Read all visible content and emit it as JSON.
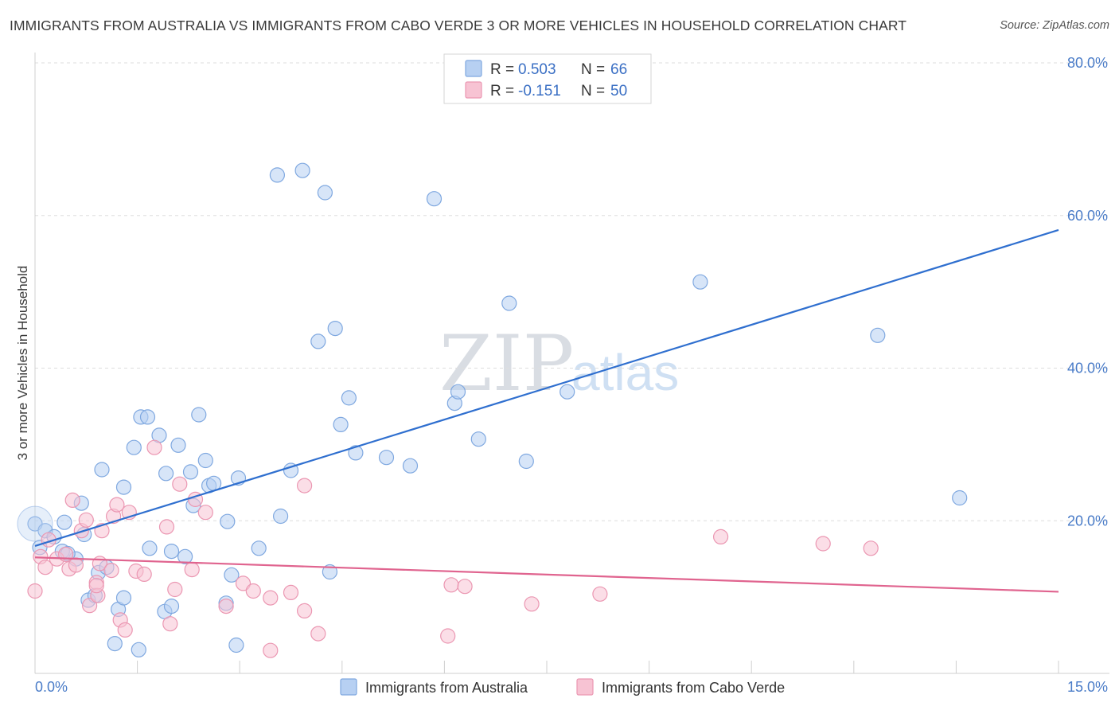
{
  "header": {
    "title": "IMMIGRANTS FROM AUSTRALIA VS IMMIGRANTS FROM CABO VERDE 3 OR MORE VEHICLES IN HOUSEHOLD CORRELATION CHART",
    "source": "Source: ZipAtlas.com"
  },
  "watermark": {
    "part1": "ZIP",
    "part2": "atlas"
  },
  "legend": {
    "rows": [
      {
        "r_label": "R = ",
        "r_value": "0.503",
        "n_label": "N = ",
        "n_value": "66"
      },
      {
        "r_label": "R = ",
        "r_value": "-0.151",
        "n_label": "N = ",
        "n_value": "50"
      }
    ]
  },
  "colors": {
    "australia_fill": "#b7d0f2",
    "australia_stroke": "#7fa8e0",
    "australia_line": "#2f6fcf",
    "caboverde_fill": "#f7c3d3",
    "caboverde_stroke": "#eb97b2",
    "caboverde_line": "#e0648f"
  },
  "chart_data": {
    "type": "scatter",
    "title": "IMMIGRANTS FROM AUSTRALIA VS IMMIGRANTS FROM CABO VERDE 3 OR MORE VEHICLES IN HOUSEHOLD CORRELATION CHART",
    "xlabel": "",
    "ylabel": "3 or more Vehicles in Household",
    "xlim": [
      0,
      15
    ],
    "ylim": [
      0,
      80
    ],
    "x_tick_labels": [
      "0.0%",
      "15.0%"
    ],
    "y_ticks": [
      20,
      40,
      60,
      80
    ],
    "y_tick_labels": [
      "20.0%",
      "40.0%",
      "60.0%",
      "80.0%"
    ],
    "grid": true,
    "legend_position": "top-center",
    "series": [
      {
        "name": "Immigrants from Australia",
        "r": 0.503,
        "n": 66,
        "trend": {
          "x": [
            0,
            15
          ],
          "y": [
            16.7,
            58.1
          ]
        },
        "points": [
          [
            0.0,
            19.6
          ],
          [
            0.07,
            16.5
          ],
          [
            0.15,
            18.7
          ],
          [
            0.28,
            17.9
          ],
          [
            0.43,
            19.8
          ],
          [
            0.4,
            16.0
          ],
          [
            0.6,
            15.0
          ],
          [
            0.72,
            18.2
          ],
          [
            0.68,
            22.3
          ],
          [
            0.78,
            9.6
          ],
          [
            0.88,
            10.2
          ],
          [
            0.93,
            13.2
          ],
          [
            0.98,
            26.7
          ],
          [
            1.05,
            13.9
          ],
          [
            1.17,
            3.9
          ],
          [
            1.22,
            8.4
          ],
          [
            1.3,
            9.9
          ],
          [
            1.3,
            24.4
          ],
          [
            1.45,
            29.6
          ],
          [
            1.52,
            3.1
          ],
          [
            1.55,
            33.6
          ],
          [
            1.65,
            33.6
          ],
          [
            1.68,
            16.4
          ],
          [
            1.82,
            31.2
          ],
          [
            1.9,
            8.1
          ],
          [
            1.92,
            26.2
          ],
          [
            2.0,
            16.0
          ],
          [
            2.1,
            29.9
          ],
          [
            2.2,
            15.3
          ],
          [
            2.28,
            26.4
          ],
          [
            2.32,
            22.0
          ],
          [
            2.4,
            33.9
          ],
          [
            2.5,
            27.9
          ],
          [
            2.55,
            24.6
          ],
          [
            2.62,
            24.9
          ],
          [
            2.8,
            9.2
          ],
          [
            2.82,
            19.9
          ],
          [
            2.88,
            12.9
          ],
          [
            2.95,
            3.7
          ],
          [
            2.98,
            25.6
          ],
          [
            3.28,
            16.4
          ],
          [
            3.55,
            65.3
          ],
          [
            3.6,
            20.6
          ],
          [
            3.75,
            26.6
          ],
          [
            3.92,
            65.9
          ],
          [
            4.15,
            43.5
          ],
          [
            4.25,
            63.0
          ],
          [
            4.32,
            13.3
          ],
          [
            4.4,
            45.2
          ],
          [
            4.48,
            32.6
          ],
          [
            4.6,
            36.1
          ],
          [
            4.7,
            28.9
          ],
          [
            5.15,
            28.3
          ],
          [
            5.5,
            27.2
          ],
          [
            5.85,
            62.2
          ],
          [
            6.15,
            35.4
          ],
          [
            6.2,
            36.9
          ],
          [
            6.5,
            30.7
          ],
          [
            6.95,
            48.5
          ],
          [
            7.2,
            27.8
          ],
          [
            7.8,
            36.9
          ],
          [
            9.75,
            51.3
          ],
          [
            12.35,
            44.3
          ],
          [
            13.55,
            23.0
          ],
          [
            0.48,
            15.7
          ],
          [
            2.0,
            8.8
          ]
        ]
      },
      {
        "name": "Immigrants from Cabo Verde",
        "r": -0.151,
        "n": 50,
        "trend": {
          "x": [
            0,
            15
          ],
          "y": [
            15.2,
            10.7
          ]
        },
        "points": [
          [
            0.0,
            10.8
          ],
          [
            0.08,
            15.3
          ],
          [
            0.15,
            13.9
          ],
          [
            0.2,
            17.5
          ],
          [
            0.32,
            15.0
          ],
          [
            0.45,
            15.6
          ],
          [
            0.5,
            13.7
          ],
          [
            0.55,
            22.7
          ],
          [
            0.6,
            14.2
          ],
          [
            0.68,
            18.7
          ],
          [
            0.75,
            20.1
          ],
          [
            0.8,
            8.9
          ],
          [
            0.9,
            11.9
          ],
          [
            0.92,
            10.2
          ],
          [
            0.95,
            14.4
          ],
          [
            0.98,
            18.7
          ],
          [
            1.12,
            13.5
          ],
          [
            1.15,
            20.6
          ],
          [
            1.2,
            22.1
          ],
          [
            1.25,
            7.0
          ],
          [
            1.32,
            5.7
          ],
          [
            1.38,
            21.1
          ],
          [
            1.48,
            13.4
          ],
          [
            1.6,
            13.0
          ],
          [
            1.75,
            29.6
          ],
          [
            1.93,
            19.2
          ],
          [
            1.98,
            6.5
          ],
          [
            2.05,
            11.0
          ],
          [
            2.12,
            24.8
          ],
          [
            2.3,
            13.6
          ],
          [
            2.35,
            22.8
          ],
          [
            2.5,
            21.1
          ],
          [
            2.8,
            8.8
          ],
          [
            3.05,
            11.8
          ],
          [
            3.2,
            10.8
          ],
          [
            3.45,
            9.9
          ],
          [
            3.45,
            3.0
          ],
          [
            3.75,
            10.6
          ],
          [
            3.95,
            8.2
          ],
          [
            3.95,
            24.6
          ],
          [
            4.15,
            5.2
          ],
          [
            6.05,
            4.9
          ],
          [
            6.1,
            11.6
          ],
          [
            6.3,
            11.4
          ],
          [
            7.28,
            9.1
          ],
          [
            8.28,
            10.4
          ],
          [
            10.05,
            17.9
          ],
          [
            11.55,
            17.0
          ],
          [
            12.25,
            16.4
          ],
          [
            0.9,
            11.5
          ]
        ]
      }
    ]
  },
  "bottom_legend": {
    "items": [
      {
        "label": "Immigrants from Australia"
      },
      {
        "label": "Immigrants from Cabo Verde"
      }
    ]
  }
}
